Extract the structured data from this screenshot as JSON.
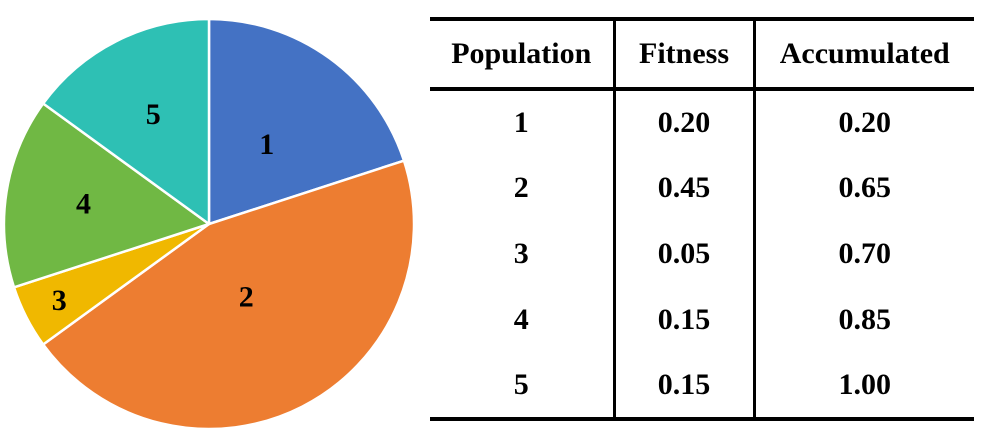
{
  "chart_data": [
    {
      "type": "pie",
      "categories": [
        "1",
        "2",
        "3",
        "4",
        "5"
      ],
      "values": [
        0.2,
        0.45,
        0.05,
        0.15,
        0.15
      ],
      "colors": [
        "#4472C4",
        "#ED7D31",
        "#F0B800",
        "#70B844",
        "#2EC0B4"
      ],
      "slice_labels": [
        "1",
        "2",
        "3",
        "4",
        "5"
      ],
      "start": "12 o'clock",
      "direction": "clockwise"
    },
    {
      "type": "table",
      "columns": [
        "Population",
        "Fitness",
        "Accumulated"
      ],
      "rows": [
        [
          "1",
          "0.20",
          "0.20"
        ],
        [
          "2",
          "0.45",
          "0.65"
        ],
        [
          "3",
          "0.05",
          "0.70"
        ],
        [
          "4",
          "0.15",
          "0.85"
        ],
        [
          "5",
          "0.15",
          "1.00"
        ]
      ]
    }
  ]
}
